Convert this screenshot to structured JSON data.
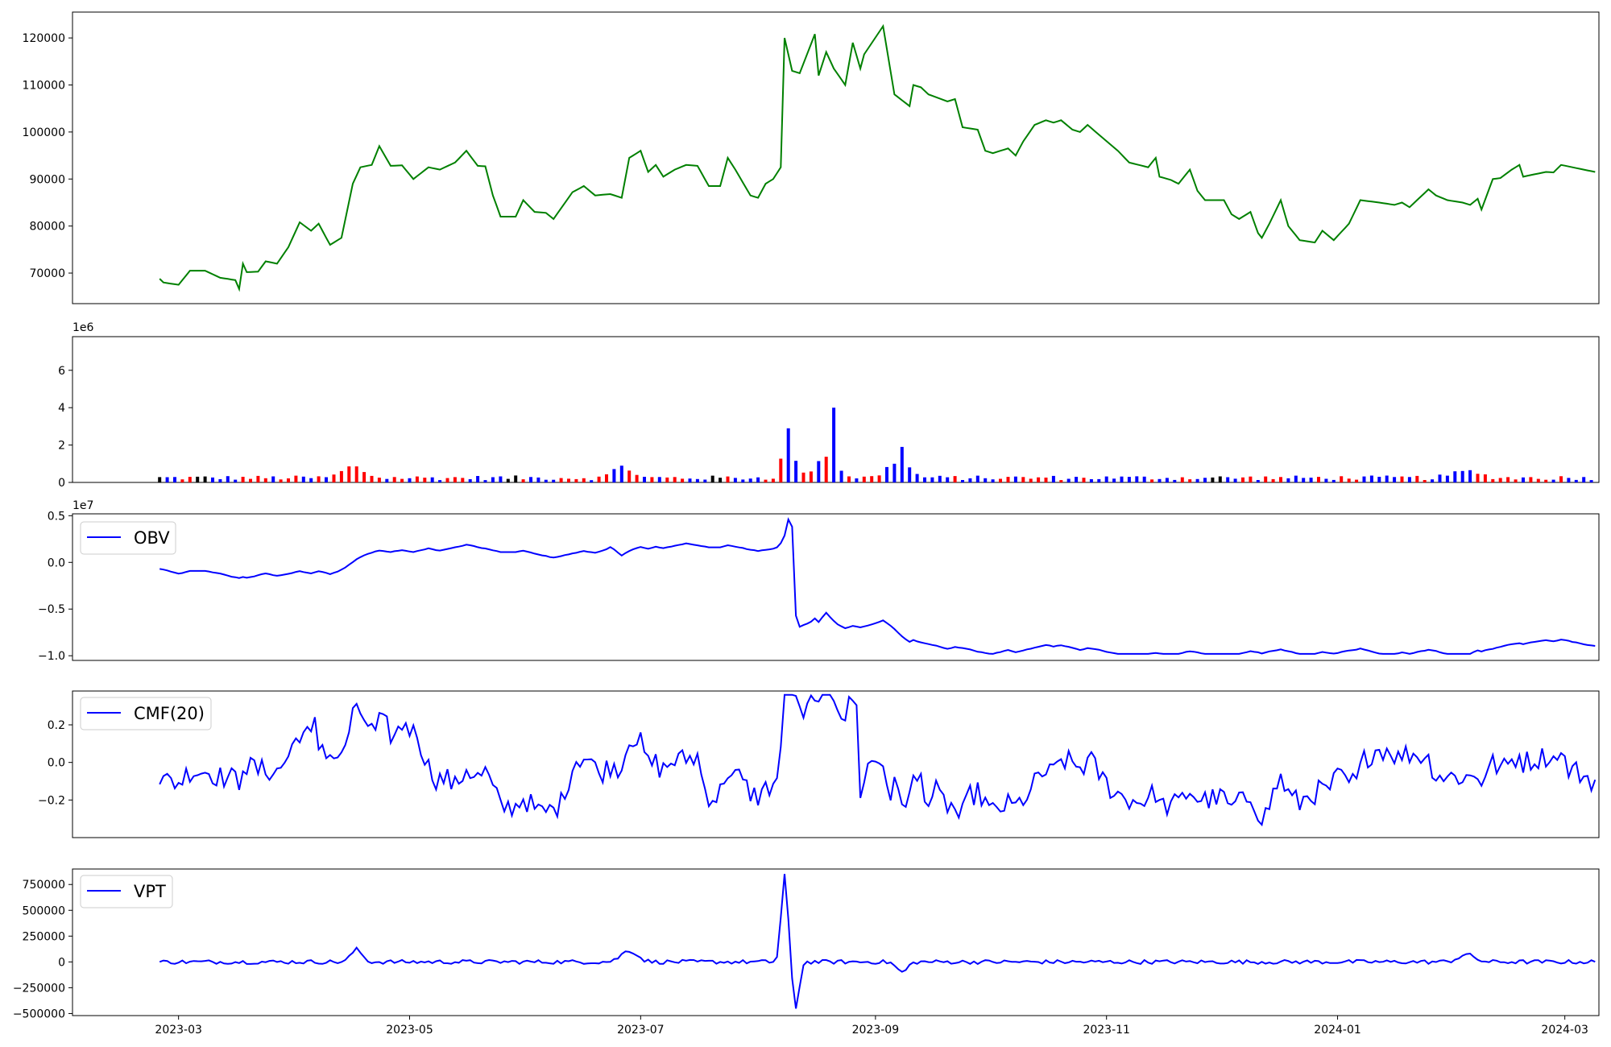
{
  "chart_data": [
    {
      "id": "price",
      "type": "line",
      "color": "#008000",
      "x_range": [
        "2023-02-01",
        "2024-03-10"
      ],
      "ylim": [
        63500,
        125500
      ],
      "yticks": [
        70000,
        80000,
        90000,
        100000,
        110000,
        120000
      ],
      "ytick_labels": [
        "70000",
        "80000",
        "90000",
        "100000",
        "110000",
        "120000"
      ],
      "series": [
        {
          "anchors": [
            [
              "2023-02-24",
              68800
            ],
            [
              "2023-02-25",
              68000
            ],
            [
              "2023-03-01",
              67500
            ],
            [
              "2023-03-04",
              70500
            ],
            [
              "2023-03-08",
              70500
            ],
            [
              "2023-03-12",
              69000
            ],
            [
              "2023-03-16",
              68500
            ],
            [
              "2023-03-17",
              66600
            ],
            [
              "2023-03-18",
              72000
            ],
            [
              "2023-03-19",
              70200
            ],
            [
              "2023-03-22",
              70300
            ],
            [
              "2023-03-24",
              72500
            ],
            [
              "2023-03-27",
              72000
            ],
            [
              "2023-03-30",
              75500
            ],
            [
              "2023-04-02",
              80800
            ],
            [
              "2023-04-05",
              79000
            ],
            [
              "2023-04-07",
              80500
            ],
            [
              "2023-04-10",
              76000
            ],
            [
              "2023-04-13",
              77500
            ],
            [
              "2023-04-16",
              89000
            ],
            [
              "2023-04-18",
              92500
            ],
            [
              "2023-04-21",
              93000
            ],
            [
              "2023-04-23",
              97000
            ],
            [
              "2023-04-26",
              92800
            ],
            [
              "2023-04-29",
              92900
            ],
            [
              "2023-05-02",
              90000
            ],
            [
              "2023-05-06",
              92500
            ],
            [
              "2023-05-09",
              92000
            ],
            [
              "2023-05-13",
              93500
            ],
            [
              "2023-05-16",
              96000
            ],
            [
              "2023-05-19",
              92800
            ],
            [
              "2023-05-21",
              92700
            ],
            [
              "2023-05-23",
              86500
            ],
            [
              "2023-05-25",
              82000
            ],
            [
              "2023-05-29",
              82000
            ],
            [
              "2023-05-31",
              85500
            ],
            [
              "2023-06-03",
              83000
            ],
            [
              "2023-06-06",
              82800
            ],
            [
              "2023-06-08",
              81500
            ],
            [
              "2023-06-13",
              87200
            ],
            [
              "2023-06-16",
              88500
            ],
            [
              "2023-06-19",
              86500
            ],
            [
              "2023-06-23",
              86800
            ],
            [
              "2023-06-26",
              86000
            ],
            [
              "2023-06-28",
              94500
            ],
            [
              "2023-07-01",
              96000
            ],
            [
              "2023-07-03",
              91500
            ],
            [
              "2023-07-05",
              93000
            ],
            [
              "2023-07-07",
              90500
            ],
            [
              "2023-07-10",
              92000
            ],
            [
              "2023-07-13",
              93000
            ],
            [
              "2023-07-16",
              92800
            ],
            [
              "2023-07-19",
              88500
            ],
            [
              "2023-07-22",
              88500
            ],
            [
              "2023-07-24",
              94500
            ],
            [
              "2023-07-26",
              92000
            ],
            [
              "2023-07-30",
              86500
            ],
            [
              "2023-08-01",
              86000
            ],
            [
              "2023-08-03",
              89000
            ],
            [
              "2023-08-05",
              90000
            ],
            [
              "2023-08-07",
              92500
            ],
            [
              "2023-08-08",
              120000
            ],
            [
              "2023-08-10",
              113000
            ],
            [
              "2023-08-12",
              112500
            ],
            [
              "2023-08-16",
              120800
            ],
            [
              "2023-08-17",
              112000
            ],
            [
              "2023-08-19",
              117000
            ],
            [
              "2023-08-21",
              113500
            ],
            [
              "2023-08-24",
              110000
            ],
            [
              "2023-08-26",
              119000
            ],
            [
              "2023-08-28",
              113500
            ],
            [
              "2023-08-29",
              116500
            ],
            [
              "2023-09-03",
              122500
            ],
            [
              "2023-09-06",
              108000
            ],
            [
              "2023-09-10",
              105500
            ],
            [
              "2023-09-11",
              110000
            ],
            [
              "2023-09-13",
              109500
            ],
            [
              "2023-09-15",
              108000
            ],
            [
              "2023-09-20",
              106500
            ],
            [
              "2023-09-22",
              107000
            ],
            [
              "2023-09-24",
              101000
            ],
            [
              "2023-09-28",
              100500
            ],
            [
              "2023-09-30",
              96000
            ],
            [
              "2023-10-02",
              95500
            ],
            [
              "2023-10-06",
              96500
            ],
            [
              "2023-10-08",
              95000
            ],
            [
              "2023-10-10",
              98000
            ],
            [
              "2023-10-13",
              101500
            ],
            [
              "2023-10-16",
              102500
            ],
            [
              "2023-10-18",
              102000
            ],
            [
              "2023-10-20",
              102500
            ],
            [
              "2023-10-23",
              100500
            ],
            [
              "2023-10-25",
              100000
            ],
            [
              "2023-10-27",
              101500
            ],
            [
              "2023-11-04",
              96000
            ],
            [
              "2023-11-07",
              93500
            ],
            [
              "2023-11-12",
              92500
            ],
            [
              "2023-11-14",
              94500
            ],
            [
              "2023-11-15",
              90500
            ],
            [
              "2023-11-18",
              89800
            ],
            [
              "2023-11-20",
              89000
            ],
            [
              "2023-11-23",
              92000
            ],
            [
              "2023-11-25",
              87500
            ],
            [
              "2023-11-27",
              85500
            ],
            [
              "2023-12-02",
              85500
            ],
            [
              "2023-12-04",
              82500
            ],
            [
              "2023-12-06",
              81500
            ],
            [
              "2023-12-09",
              83000
            ],
            [
              "2023-12-11",
              78500
            ],
            [
              "2023-12-12",
              77500
            ],
            [
              "2023-12-14",
              80500
            ],
            [
              "2023-12-17",
              85500
            ],
            [
              "2023-12-19",
              80000
            ],
            [
              "2023-12-22",
              77000
            ],
            [
              "2023-12-26",
              76500
            ],
            [
              "2023-12-28",
              79000
            ],
            [
              "2023-12-31",
              77000
            ],
            [
              "2024-01-04",
              80500
            ],
            [
              "2024-01-07",
              85500
            ],
            [
              "2024-01-12",
              85000
            ],
            [
              "2024-01-16",
              84500
            ],
            [
              "2024-01-18",
              85000
            ],
            [
              "2024-01-20",
              84000
            ],
            [
              "2024-01-25",
              87800
            ],
            [
              "2024-01-27",
              86500
            ],
            [
              "2024-01-30",
              85500
            ],
            [
              "2024-02-03",
              85000
            ],
            [
              "2024-02-05",
              84500
            ],
            [
              "2024-02-07",
              85800
            ],
            [
              "2024-02-08",
              83500
            ],
            [
              "2024-02-11",
              90000
            ],
            [
              "2024-02-13",
              90200
            ],
            [
              "2024-02-16",
              92000
            ],
            [
              "2024-02-18",
              93000
            ],
            [
              "2024-02-19",
              90500
            ],
            [
              "2024-02-25",
              91500
            ],
            [
              "2024-02-27",
              91400
            ],
            [
              "2024-02-29",
              93000
            ],
            [
              "2024-03-06",
              92000
            ],
            [
              "2024-03-09",
              91500
            ]
          ],
          "anchors_note": "anchors in data units — date, price"
        }
      ]
    },
    {
      "id": "volume",
      "type": "bar",
      "colors": [
        "#0000ff",
        "#ff0000",
        "#000000"
      ],
      "ylim": [
        0,
        7.8
      ],
      "yticks": [
        0,
        2,
        4,
        6
      ],
      "ytick_labels": [
        "0",
        "2",
        "4",
        "6"
      ],
      "offset_label": "1e6"
    },
    {
      "id": "obv",
      "type": "line",
      "color": "#0000ff",
      "legend": "OBV",
      "ylim": [
        -1.05,
        0.52
      ],
      "yticks": [
        -1.0,
        -0.5,
        0.0,
        0.5
      ],
      "ytick_labels": [
        "−1.0",
        "−0.5",
        "0.0",
        "0.5"
      ],
      "offset_label": "1e7"
    },
    {
      "id": "cmf",
      "type": "line",
      "color": "#0000ff",
      "legend": "CMF(20)",
      "ylim": [
        -0.4,
        0.38
      ],
      "yticks": [
        -0.2,
        0.0,
        0.2
      ],
      "ytick_labels": [
        "−0.2",
        "0.0",
        "0.2"
      ]
    },
    {
      "id": "vpt",
      "type": "line",
      "color": "#0000ff",
      "legend": "VPT",
      "ylim": [
        -520000,
        900000
      ],
      "yticks": [
        -500000,
        -250000,
        0,
        250000,
        500000,
        750000
      ],
      "ytick_labels": [
        "−500000",
        "−250000",
        "0",
        "250000",
        "500000",
        "750000"
      ],
      "xticks": [
        "2023-03-01",
        "2023-05-01",
        "2023-07-01",
        "2023-09-01",
        "2023-11-01",
        "2024-01-01",
        "2024-03-01"
      ],
      "xtick_labels": [
        "2023-03",
        "2023-05",
        "2023-07",
        "2023-09",
        "2023-11",
        "2024-01",
        "2024-03"
      ]
    }
  ]
}
